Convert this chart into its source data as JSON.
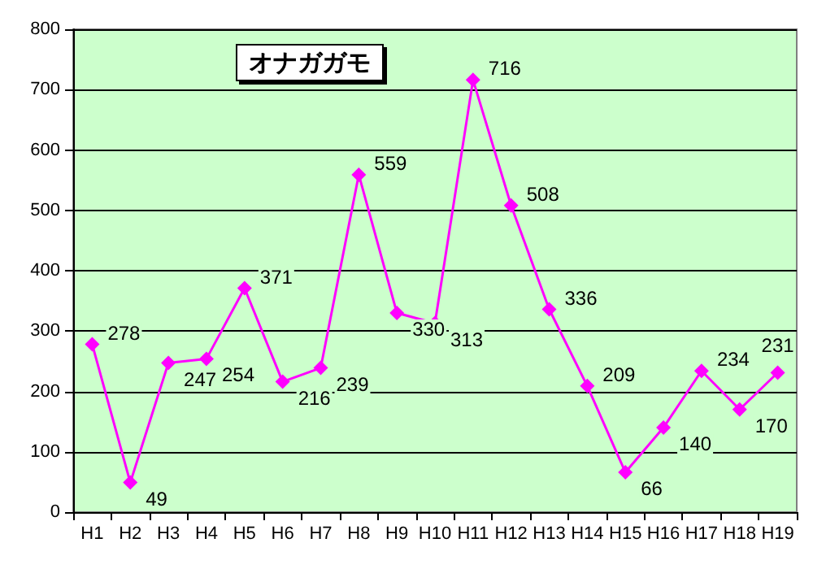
{
  "chart_data": {
    "type": "line",
    "title": "オナガガモ",
    "categories": [
      "H1",
      "H2",
      "H3",
      "H4",
      "H5",
      "H6",
      "H7",
      "H8",
      "H9",
      "H10",
      "H11",
      "H12",
      "H13",
      "H14",
      "H15",
      "H16",
      "H17",
      "H18",
      "H19"
    ],
    "series": [
      {
        "color": "#ff00ff",
        "values": [
          278,
          49,
          247,
          254,
          371,
          216,
          239,
          559,
          330,
          313,
          716,
          508,
          336,
          209,
          66,
          140,
          234,
          170,
          231
        ]
      }
    ],
    "ylim": [
      0,
      800
    ],
    "yticks": [
      0,
      100,
      200,
      300,
      400,
      500,
      600,
      700,
      800
    ],
    "grid": "y",
    "marker": "diamond",
    "data_labels": true
  }
}
